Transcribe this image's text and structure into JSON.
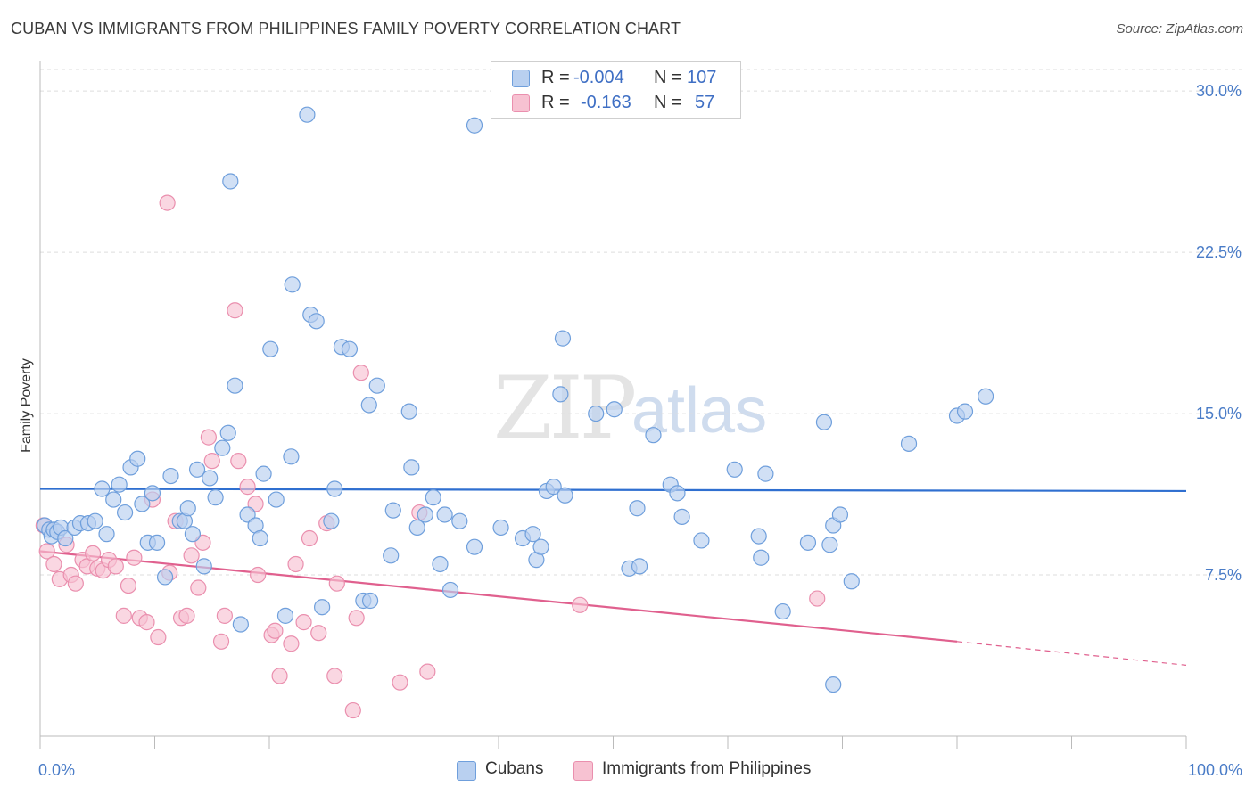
{
  "header": {
    "title": "CUBAN VS IMMIGRANTS FROM PHILIPPINES FAMILY POVERTY CORRELATION CHART",
    "source": "Source: ZipAtlas.com"
  },
  "watermark": {
    "zip": "ZIP",
    "atlas": "atlas"
  },
  "legend": {
    "cubans": {
      "r_label": "R =",
      "r_value": "-0.004",
      "n_label": "N =",
      "n_value": "107"
    },
    "philippines": {
      "r_label": "R =",
      "r_value": "-0.163",
      "n_label": "N =",
      "n_value": "57"
    }
  },
  "bottom_legend": {
    "cubans": "Cubans",
    "philippines": "Immigrants from Philippines"
  },
  "colors": {
    "cubans_fill": "#b9d0f0",
    "cubans_stroke": "#6f9fdc",
    "cubans_line": "#2f6fd0",
    "phil_fill": "#f7c2d2",
    "phil_stroke": "#ea8fae",
    "phil_line": "#e0608e",
    "tick_text": "#4a7cc7",
    "grid": "#dddddd"
  },
  "chart_data": {
    "type": "scatter",
    "title": "CUBAN VS IMMIGRANTS FROM PHILIPPINES FAMILY POVERTY CORRELATION CHART",
    "xlabel": "",
    "ylabel": "Family Poverty",
    "xlim": [
      0,
      100
    ],
    "ylim": [
      0,
      31
    ],
    "y_ticks": [
      7.5,
      15.0,
      22.5,
      30.0
    ],
    "y_tick_labels": [
      "7.5%",
      "15.0%",
      "22.5%",
      "30.0%"
    ],
    "x_tick_labels": [
      "0.0%",
      "100.0%"
    ],
    "grid": "horizontal dashed",
    "legend_position": "top-center",
    "series": [
      {
        "name": "Cubans",
        "trend": {
          "x": [
            0,
            100
          ],
          "y": [
            11.5,
            11.4
          ],
          "style": "solid"
        },
        "points": [
          [
            0.4,
            9.8
          ],
          [
            0.8,
            9.6
          ],
          [
            1.0,
            9.3
          ],
          [
            1.2,
            9.6
          ],
          [
            1.5,
            9.5
          ],
          [
            1.8,
            9.7
          ],
          [
            2.2,
            9.2
          ],
          [
            3.0,
            9.7
          ],
          [
            3.5,
            9.9
          ],
          [
            4.2,
            9.9
          ],
          [
            4.8,
            10.0
          ],
          [
            5.4,
            11.5
          ],
          [
            5.8,
            9.4
          ],
          [
            6.4,
            11.0
          ],
          [
            6.9,
            11.7
          ],
          [
            7.4,
            10.4
          ],
          [
            7.9,
            12.5
          ],
          [
            8.5,
            12.9
          ],
          [
            8.9,
            10.8
          ],
          [
            9.4,
            9.0
          ],
          [
            9.8,
            11.3
          ],
          [
            10.2,
            9.0
          ],
          [
            10.9,
            7.4
          ],
          [
            11.4,
            12.1
          ],
          [
            12.2,
            10.0
          ],
          [
            12.6,
            10.0
          ],
          [
            12.9,
            10.6
          ],
          [
            13.3,
            9.4
          ],
          [
            13.7,
            12.4
          ],
          [
            14.3,
            7.9
          ],
          [
            14.8,
            12.0
          ],
          [
            15.3,
            11.1
          ],
          [
            15.9,
            13.4
          ],
          [
            16.4,
            14.1
          ],
          [
            16.6,
            25.8
          ],
          [
            17.0,
            16.3
          ],
          [
            17.5,
            5.2
          ],
          [
            18.1,
            10.3
          ],
          [
            18.8,
            9.8
          ],
          [
            19.2,
            9.2
          ],
          [
            19.5,
            12.2
          ],
          [
            20.1,
            18.0
          ],
          [
            20.6,
            11.0
          ],
          [
            21.4,
            5.6
          ],
          [
            21.9,
            13.0
          ],
          [
            22.0,
            21.0
          ],
          [
            23.3,
            28.9
          ],
          [
            23.6,
            19.6
          ],
          [
            24.1,
            19.3
          ],
          [
            24.6,
            6.0
          ],
          [
            25.4,
            10.0
          ],
          [
            25.7,
            11.5
          ],
          [
            26.3,
            18.1
          ],
          [
            27.0,
            18.0
          ],
          [
            28.2,
            6.3
          ],
          [
            28.7,
            15.4
          ],
          [
            28.8,
            6.3
          ],
          [
            29.4,
            16.3
          ],
          [
            30.6,
            8.4
          ],
          [
            30.8,
            10.5
          ],
          [
            32.2,
            15.1
          ],
          [
            32.4,
            12.5
          ],
          [
            32.9,
            9.7
          ],
          [
            33.6,
            10.3
          ],
          [
            34.3,
            11.1
          ],
          [
            34.9,
            8.0
          ],
          [
            35.3,
            10.3
          ],
          [
            35.8,
            6.8
          ],
          [
            36.6,
            10.0
          ],
          [
            37.9,
            8.8
          ],
          [
            37.9,
            28.4
          ],
          [
            40.2,
            9.7
          ],
          [
            42.1,
            9.2
          ],
          [
            43.0,
            9.4
          ],
          [
            43.3,
            8.2
          ],
          [
            43.7,
            8.8
          ],
          [
            44.2,
            11.4
          ],
          [
            44.8,
            11.6
          ],
          [
            45.4,
            15.9
          ],
          [
            45.6,
            18.5
          ],
          [
            45.8,
            11.2
          ],
          [
            48.5,
            15.0
          ],
          [
            50.1,
            15.2
          ],
          [
            51.4,
            7.8
          ],
          [
            52.1,
            10.6
          ],
          [
            52.3,
            7.9
          ],
          [
            53.5,
            14.0
          ],
          [
            55.0,
            11.7
          ],
          [
            55.6,
            11.3
          ],
          [
            56.0,
            10.2
          ],
          [
            57.7,
            9.1
          ],
          [
            60.6,
            12.4
          ],
          [
            62.7,
            9.3
          ],
          [
            62.9,
            8.3
          ],
          [
            63.3,
            12.2
          ],
          [
            64.8,
            5.8
          ],
          [
            67.0,
            9.0
          ],
          [
            68.4,
            14.6
          ],
          [
            68.9,
            8.9
          ],
          [
            69.2,
            9.8
          ],
          [
            69.8,
            10.3
          ],
          [
            70.8,
            7.2
          ],
          [
            75.8,
            13.6
          ],
          [
            80.0,
            14.9
          ],
          [
            80.7,
            15.1
          ],
          [
            82.5,
            15.8
          ],
          [
            69.2,
            2.4
          ]
        ]
      },
      {
        "name": "Immigrants from Philippines",
        "trend": {
          "x": [
            0,
            80
          ],
          "y": [
            8.6,
            4.4
          ],
          "extended_x": [
            80,
            100
          ],
          "extended_y": [
            4.4,
            3.3
          ],
          "style": "solid then dashed"
        },
        "points": [
          [
            0.3,
            9.8
          ],
          [
            0.6,
            8.6
          ],
          [
            1.2,
            8.0
          ],
          [
            1.7,
            7.3
          ],
          [
            2.3,
            8.9
          ],
          [
            2.7,
            7.5
          ],
          [
            3.1,
            7.1
          ],
          [
            3.7,
            8.2
          ],
          [
            4.1,
            7.9
          ],
          [
            4.6,
            8.5
          ],
          [
            5.0,
            7.8
          ],
          [
            5.5,
            7.7
          ],
          [
            6.0,
            8.2
          ],
          [
            6.6,
            7.9
          ],
          [
            7.3,
            5.6
          ],
          [
            7.7,
            7.0
          ],
          [
            8.2,
            8.3
          ],
          [
            8.7,
            5.5
          ],
          [
            9.3,
            5.3
          ],
          [
            9.8,
            11.0
          ],
          [
            10.3,
            4.6
          ],
          [
            11.1,
            24.8
          ],
          [
            11.3,
            7.6
          ],
          [
            11.8,
            10.0
          ],
          [
            12.3,
            5.5
          ],
          [
            12.8,
            5.6
          ],
          [
            13.2,
            8.4
          ],
          [
            13.8,
            6.9
          ],
          [
            14.2,
            9.0
          ],
          [
            14.7,
            13.9
          ],
          [
            15.0,
            12.8
          ],
          [
            15.8,
            4.4
          ],
          [
            16.1,
            5.6
          ],
          [
            17.0,
            19.8
          ],
          [
            17.3,
            12.8
          ],
          [
            18.1,
            11.6
          ],
          [
            18.8,
            10.8
          ],
          [
            19.0,
            7.5
          ],
          [
            20.2,
            4.7
          ],
          [
            20.5,
            4.9
          ],
          [
            20.9,
            2.8
          ],
          [
            21.9,
            4.3
          ],
          [
            22.3,
            8.0
          ],
          [
            23.0,
            5.3
          ],
          [
            23.5,
            9.2
          ],
          [
            24.3,
            4.8
          ],
          [
            25.0,
            9.9
          ],
          [
            25.7,
            2.8
          ],
          [
            25.9,
            7.1
          ],
          [
            27.3,
            1.2
          ],
          [
            27.6,
            5.5
          ],
          [
            28.0,
            16.9
          ],
          [
            31.4,
            2.5
          ],
          [
            33.1,
            10.4
          ],
          [
            33.8,
            3.0
          ],
          [
            47.1,
            6.1
          ],
          [
            67.8,
            6.4
          ]
        ]
      }
    ]
  }
}
